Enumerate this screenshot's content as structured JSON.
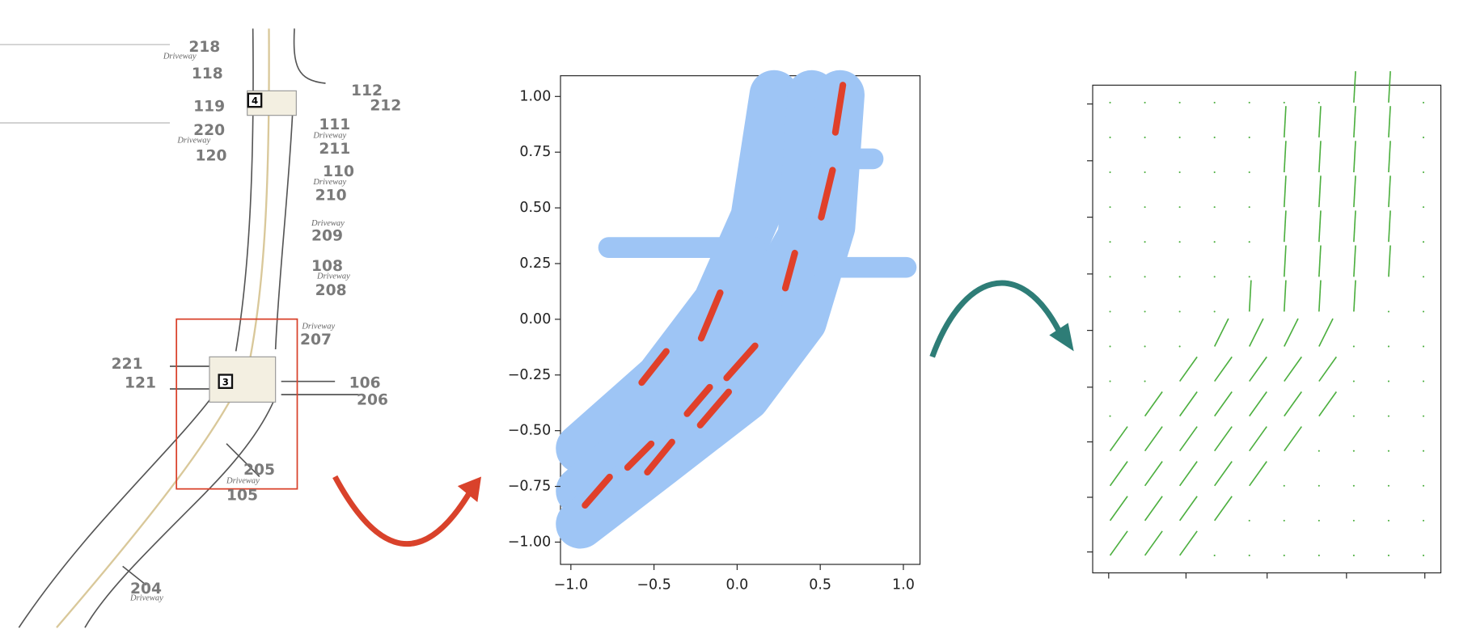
{
  "map": {
    "labels": [
      "218",
      "Driveway",
      "118",
      "112",
      "212",
      "119",
      "220",
      "Driveway",
      "120",
      "111",
      "Driveway",
      "211",
      "110",
      "Driveway",
      "210",
      "Driveway",
      "209",
      "108",
      "Driveway",
      "208",
      "Driveway",
      "207",
      "221",
      "121",
      "106",
      "206",
      "205",
      "Driveway",
      "105",
      "204",
      "Driveway"
    ],
    "signals": [
      "4",
      "3"
    ]
  },
  "chart_data": [
    {
      "type": "scatter",
      "xlim": [
        -1.0625,
        1.1
      ],
      "ylim": [
        -1.1,
        1.093
      ],
      "xticks": [
        {
          "value": -1,
          "label": "−1.0"
        },
        {
          "value": -0.5,
          "label": "−0.5"
        },
        {
          "value": 0,
          "label": "0.0"
        },
        0.5,
        {
          "value": 1,
          "label": "1.0"
        }
      ],
      "yticks": [
        {
          "value": -1,
          "label": "−1.00"
        },
        {
          "value": -0.75,
          "label": "−0.75"
        },
        {
          "value": -0.5,
          "label": "−0.50"
        },
        {
          "value": -0.25,
          "label": "−0.25"
        },
        {
          "value": 0,
          "label": "0.00"
        },
        0.25,
        {
          "value": 0.5,
          "label": "0.50"
        },
        0.75,
        {
          "value": 1,
          "label": "1.00"
        }
      ],
      "series": [
        {
          "color": "#9ec5f5",
          "lines": [
            {
              "x": [
                -0.943,
                -0.463,
                -0.119,
                0.108,
                0.222
              ],
              "y": [
                -0.58,
                -0.263,
                0.076,
                0.458,
                1.008
              ]
            },
            {
              "x": [
                -0.943,
                -0.347,
                0.108,
                0.392,
                0.449
              ],
              "y": [
                -0.771,
                -0.39,
                -0.008,
                0.373,
                1.008
              ]
            },
            {
              "x": [
                -0.943,
                -0.463,
                0.051,
                0.392,
                0.563,
                0.619
              ],
              "y": [
                -0.919,
                -0.644,
                -0.347,
                -0.008,
                0.415,
                1.008
              ]
            },
            {
              "x": [
                -0.773,
                0.108
              ],
              "y": [
                0.322,
                0.322
              ]
            },
            {
              "x": [
                0.506,
                1.017
              ],
              "y": [
                0.233,
                0.233
              ]
            },
            {
              "x": [
                0.619,
                0.818
              ],
              "y": [
                0.72,
                0.72
              ]
            }
          ]
        },
        {
          "color": "#e0402a",
          "lines": [
            {
              "x": [
                0.636,
                0.591
              ],
              "y": [
                1.051,
                0.839
              ]
            },
            {
              "x": [
                0.574,
                0.506
              ],
              "y": [
                0.669,
                0.458
              ]
            },
            {
              "x": [
                0.347,
                0.29
              ],
              "y": [
                0.297,
                0.14
              ]
            },
            {
              "x": [
                -0.102,
                -0.216
              ],
              "y": [
                0.119,
                -0.085
              ]
            },
            {
              "x": [
                -0.426,
                -0.574
              ],
              "y": [
                -0.144,
                -0.284
              ]
            },
            {
              "x": [
                0.108,
                -0.063
              ],
              "y": [
                -0.119,
                -0.263
              ]
            },
            {
              "x": [
                -0.165,
                -0.301
              ],
              "y": [
                -0.305,
                -0.424
              ]
            },
            {
              "x": [
                -0.051,
                -0.222
              ],
              "y": [
                -0.326,
                -0.475
              ]
            },
            {
              "x": [
                -0.517,
                -0.659
              ],
              "y": [
                -0.559,
                -0.665
              ]
            },
            {
              "x": [
                -0.392,
                -0.54
              ],
              "y": [
                -0.551,
                -0.686
              ]
            },
            {
              "x": [
                -0.767,
                -0.915
              ],
              "y": [
                -0.708,
                -0.835
              ]
            }
          ]
        }
      ]
    },
    {
      "type": "quiver",
      "color": "#4caf3f",
      "xlim": [
        0,
        10
      ],
      "ylim": [
        0,
        14
      ],
      "xticks": [
        0.46,
        2.68,
        5.01,
        7.29,
        9.54
      ],
      "yticks": [
        0.6,
        2.17,
        3.76,
        5.33,
        6.96,
        8.58,
        10.21,
        11.83,
        13.46
      ],
      "u": [
        [
          0.5,
          0.5,
          0.5,
          0,
          0,
          0,
          0,
          0,
          0,
          0
        ],
        [
          0.5,
          0.5,
          0.5,
          0.5,
          0,
          0,
          0,
          0,
          0,
          0
        ],
        [
          0.5,
          0.5,
          0.5,
          0.5,
          0.5,
          0,
          0,
          0,
          0,
          0
        ],
        [
          0.5,
          0.5,
          0.5,
          0.5,
          0.5,
          0.5,
          0,
          0,
          0,
          0
        ],
        [
          0,
          0.5,
          0.5,
          0.5,
          0.5,
          0.5,
          0.5,
          0,
          0,
          0
        ],
        [
          0,
          0,
          0.5,
          0.5,
          0.5,
          0.5,
          0.5,
          0,
          0,
          0
        ],
        [
          0,
          0,
          0,
          0.4,
          0.4,
          0.4,
          0.4,
          0,
          0,
          0
        ],
        [
          0,
          0,
          0,
          0,
          0.05,
          0.05,
          0.05,
          0.05,
          0,
          0
        ],
        [
          0,
          0,
          0,
          0,
          0,
          0.05,
          0.05,
          0.05,
          0.05,
          0
        ],
        [
          0,
          0,
          0,
          0,
          0,
          0.05,
          0.05,
          0.05,
          0.05,
          0
        ],
        [
          0,
          0,
          0,
          0,
          0,
          0.05,
          0.05,
          0.05,
          0.05,
          0
        ],
        [
          0,
          0,
          0,
          0,
          0,
          0.05,
          0.05,
          0.05,
          0.05,
          0
        ],
        [
          0,
          0,
          0,
          0,
          0,
          0.05,
          0.05,
          0.05,
          0.05,
          0
        ],
        [
          0,
          0,
          0,
          0,
          0,
          0,
          0,
          0.05,
          0.05,
          0
        ]
      ],
      "v": [
        [
          0.7,
          0.7,
          0.7,
          0,
          0,
          0,
          0,
          0,
          0,
          0
        ],
        [
          0.7,
          0.7,
          0.7,
          0.7,
          0,
          0,
          0,
          0,
          0,
          0
        ],
        [
          0.7,
          0.7,
          0.7,
          0.7,
          0.7,
          0,
          0,
          0,
          0,
          0
        ],
        [
          0.7,
          0.7,
          0.7,
          0.7,
          0.7,
          0.7,
          0,
          0,
          0,
          0
        ],
        [
          0,
          0.7,
          0.7,
          0.7,
          0.7,
          0.7,
          0.7,
          0,
          0,
          0
        ],
        [
          0,
          0,
          0.7,
          0.7,
          0.7,
          0.7,
          0.7,
          0,
          0,
          0
        ],
        [
          0,
          0,
          0,
          0.8,
          0.8,
          0.8,
          0.8,
          0,
          0,
          0
        ],
        [
          0,
          0,
          0,
          0,
          0.9,
          0.9,
          0.9,
          0.9,
          0,
          0
        ],
        [
          0,
          0,
          0,
          0,
          0,
          0.9,
          0.9,
          0.9,
          0.9,
          0
        ],
        [
          0,
          0,
          0,
          0,
          0,
          0.9,
          0.9,
          0.9,
          0.9,
          0
        ],
        [
          0,
          0,
          0,
          0,
          0,
          0.9,
          0.9,
          0.9,
          0.9,
          0
        ],
        [
          0,
          0,
          0,
          0,
          0,
          0.9,
          0.9,
          0.9,
          0.9,
          0
        ],
        [
          0,
          0,
          0,
          0,
          0,
          0.9,
          0.9,
          0.9,
          0.9,
          0
        ],
        [
          0,
          0,
          0,
          0,
          0,
          0,
          0,
          0.9,
          0.9,
          0
        ]
      ]
    }
  ]
}
